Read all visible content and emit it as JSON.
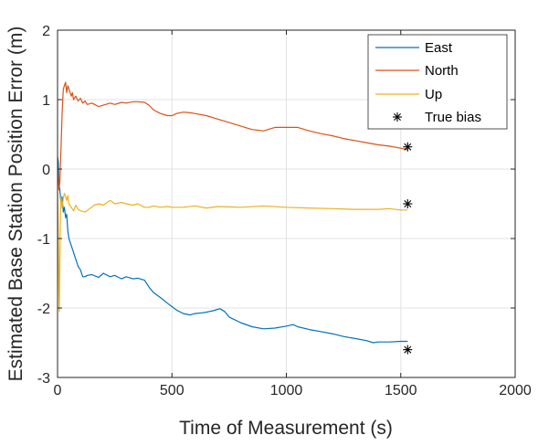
{
  "chart_data": {
    "type": "line",
    "title": "",
    "xlabel": "Time of Measurement (s)",
    "ylabel": "Estimated Base Station Position Error (m)",
    "xlim": [
      0,
      2000
    ],
    "ylim": [
      -3,
      2
    ],
    "xticks": [
      0,
      500,
      1000,
      1500,
      2000
    ],
    "yticks": [
      -3,
      -2,
      -1,
      0,
      1,
      2
    ],
    "xtick_labels": [
      "0",
      "500",
      "1000",
      "1500",
      "2000"
    ],
    "ytick_labels": [
      "-3",
      "-2",
      "-1",
      "0",
      "1",
      "2"
    ],
    "grid": true,
    "legend_position": "top-right",
    "series": [
      {
        "name": "East",
        "color": "#0072BD",
        "x": [
          0,
          3,
          6,
          10,
          15,
          20,
          25,
          30,
          35,
          40,
          45,
          50,
          60,
          70,
          80,
          90,
          100,
          110,
          120,
          130,
          150,
          180,
          200,
          230,
          250,
          280,
          300,
          330,
          350,
          380,
          400,
          420,
          450,
          480,
          500,
          520,
          550,
          580,
          600,
          630,
          650,
          680,
          700,
          710,
          730,
          750,
          800,
          850,
          900,
          950,
          1000,
          1030,
          1050,
          1100,
          1150,
          1200,
          1250,
          1300,
          1350,
          1380,
          1400,
          1450,
          1500,
          1530
        ],
        "y": [
          0.18,
          0.1,
          -0.2,
          -0.3,
          -0.5,
          -0.4,
          -0.62,
          -0.55,
          -0.7,
          -0.65,
          -0.9,
          -1.0,
          -1.1,
          -1.2,
          -1.3,
          -1.4,
          -1.45,
          -1.55,
          -1.55,
          -1.53,
          -1.52,
          -1.56,
          -1.5,
          -1.55,
          -1.53,
          -1.58,
          -1.55,
          -1.58,
          -1.57,
          -1.6,
          -1.7,
          -1.78,
          -1.85,
          -1.93,
          -1.98,
          -2.03,
          -2.08,
          -2.1,
          -2.08,
          -2.07,
          -2.06,
          -2.04,
          -2.02,
          -2.01,
          -2.05,
          -2.13,
          -2.21,
          -2.27,
          -2.3,
          -2.29,
          -2.26,
          -2.24,
          -2.27,
          -2.31,
          -2.34,
          -2.37,
          -2.41,
          -2.44,
          -2.47,
          -2.5,
          -2.49,
          -2.49,
          -2.48,
          -2.48
        ]
      },
      {
        "name": "North",
        "color": "#D95319",
        "x": [
          0,
          3,
          6,
          10,
          15,
          20,
          25,
          30,
          35,
          40,
          45,
          50,
          55,
          60,
          65,
          70,
          80,
          90,
          100,
          110,
          120,
          130,
          150,
          180,
          200,
          230,
          250,
          280,
          300,
          330,
          350,
          380,
          400,
          420,
          450,
          480,
          500,
          520,
          550,
          580,
          600,
          650,
          700,
          750,
          800,
          850,
          900,
          950,
          1000,
          1050,
          1100,
          1150,
          1200,
          1250,
          1300,
          1350,
          1400,
          1450,
          1500,
          1530
        ],
        "y": [
          0.0,
          -0.1,
          -0.3,
          -0.2,
          0.3,
          0.8,
          1.15,
          1.2,
          1.25,
          1.1,
          1.2,
          1.15,
          1.1,
          1.05,
          1.1,
          1.0,
          1.05,
          0.98,
          1.02,
          0.95,
          0.98,
          0.93,
          0.95,
          0.9,
          0.92,
          0.95,
          0.93,
          0.96,
          0.95,
          0.97,
          0.97,
          0.96,
          0.92,
          0.85,
          0.8,
          0.77,
          0.77,
          0.8,
          0.82,
          0.81,
          0.8,
          0.77,
          0.72,
          0.67,
          0.62,
          0.57,
          0.55,
          0.6,
          0.6,
          0.6,
          0.55,
          0.51,
          0.48,
          0.44,
          0.41,
          0.38,
          0.35,
          0.33,
          0.3,
          0.28
        ]
      },
      {
        "name": "Up",
        "color": "#EDB120",
        "x": [
          0,
          3,
          6,
          8,
          10,
          12,
          15,
          18,
          20,
          25,
          30,
          35,
          40,
          45,
          50,
          60,
          70,
          80,
          90,
          100,
          120,
          140,
          160,
          180,
          200,
          230,
          250,
          280,
          300,
          330,
          350,
          380,
          400,
          420,
          450,
          480,
          500,
          550,
          600,
          650,
          700,
          800,
          900,
          1000,
          1100,
          1200,
          1300,
          1400,
          1450,
          1500,
          1530
        ],
        "y": [
          -0.3,
          -0.9,
          -1.8,
          -2.05,
          -1.4,
          -0.8,
          -0.4,
          -0.5,
          -0.55,
          -0.42,
          -0.35,
          -0.4,
          -0.45,
          -0.38,
          -0.5,
          -0.55,
          -0.6,
          -0.52,
          -0.58,
          -0.6,
          -0.62,
          -0.57,
          -0.52,
          -0.5,
          -0.52,
          -0.45,
          -0.5,
          -0.48,
          -0.5,
          -0.52,
          -0.5,
          -0.55,
          -0.55,
          -0.53,
          -0.55,
          -0.54,
          -0.55,
          -0.55,
          -0.53,
          -0.56,
          -0.54,
          -0.55,
          -0.53,
          -0.55,
          -0.56,
          -0.57,
          -0.58,
          -0.58,
          -0.57,
          -0.59,
          -0.59
        ]
      }
    ],
    "markers": {
      "name": "True bias",
      "symbol": "*",
      "color": "#000000",
      "points": [
        {
          "x": 1530,
          "y": -2.6
        },
        {
          "x": 1530,
          "y": 0.32
        },
        {
          "x": 1530,
          "y": -0.5
        }
      ]
    },
    "legend": [
      "East",
      "North",
      "Up",
      "True bias"
    ]
  }
}
